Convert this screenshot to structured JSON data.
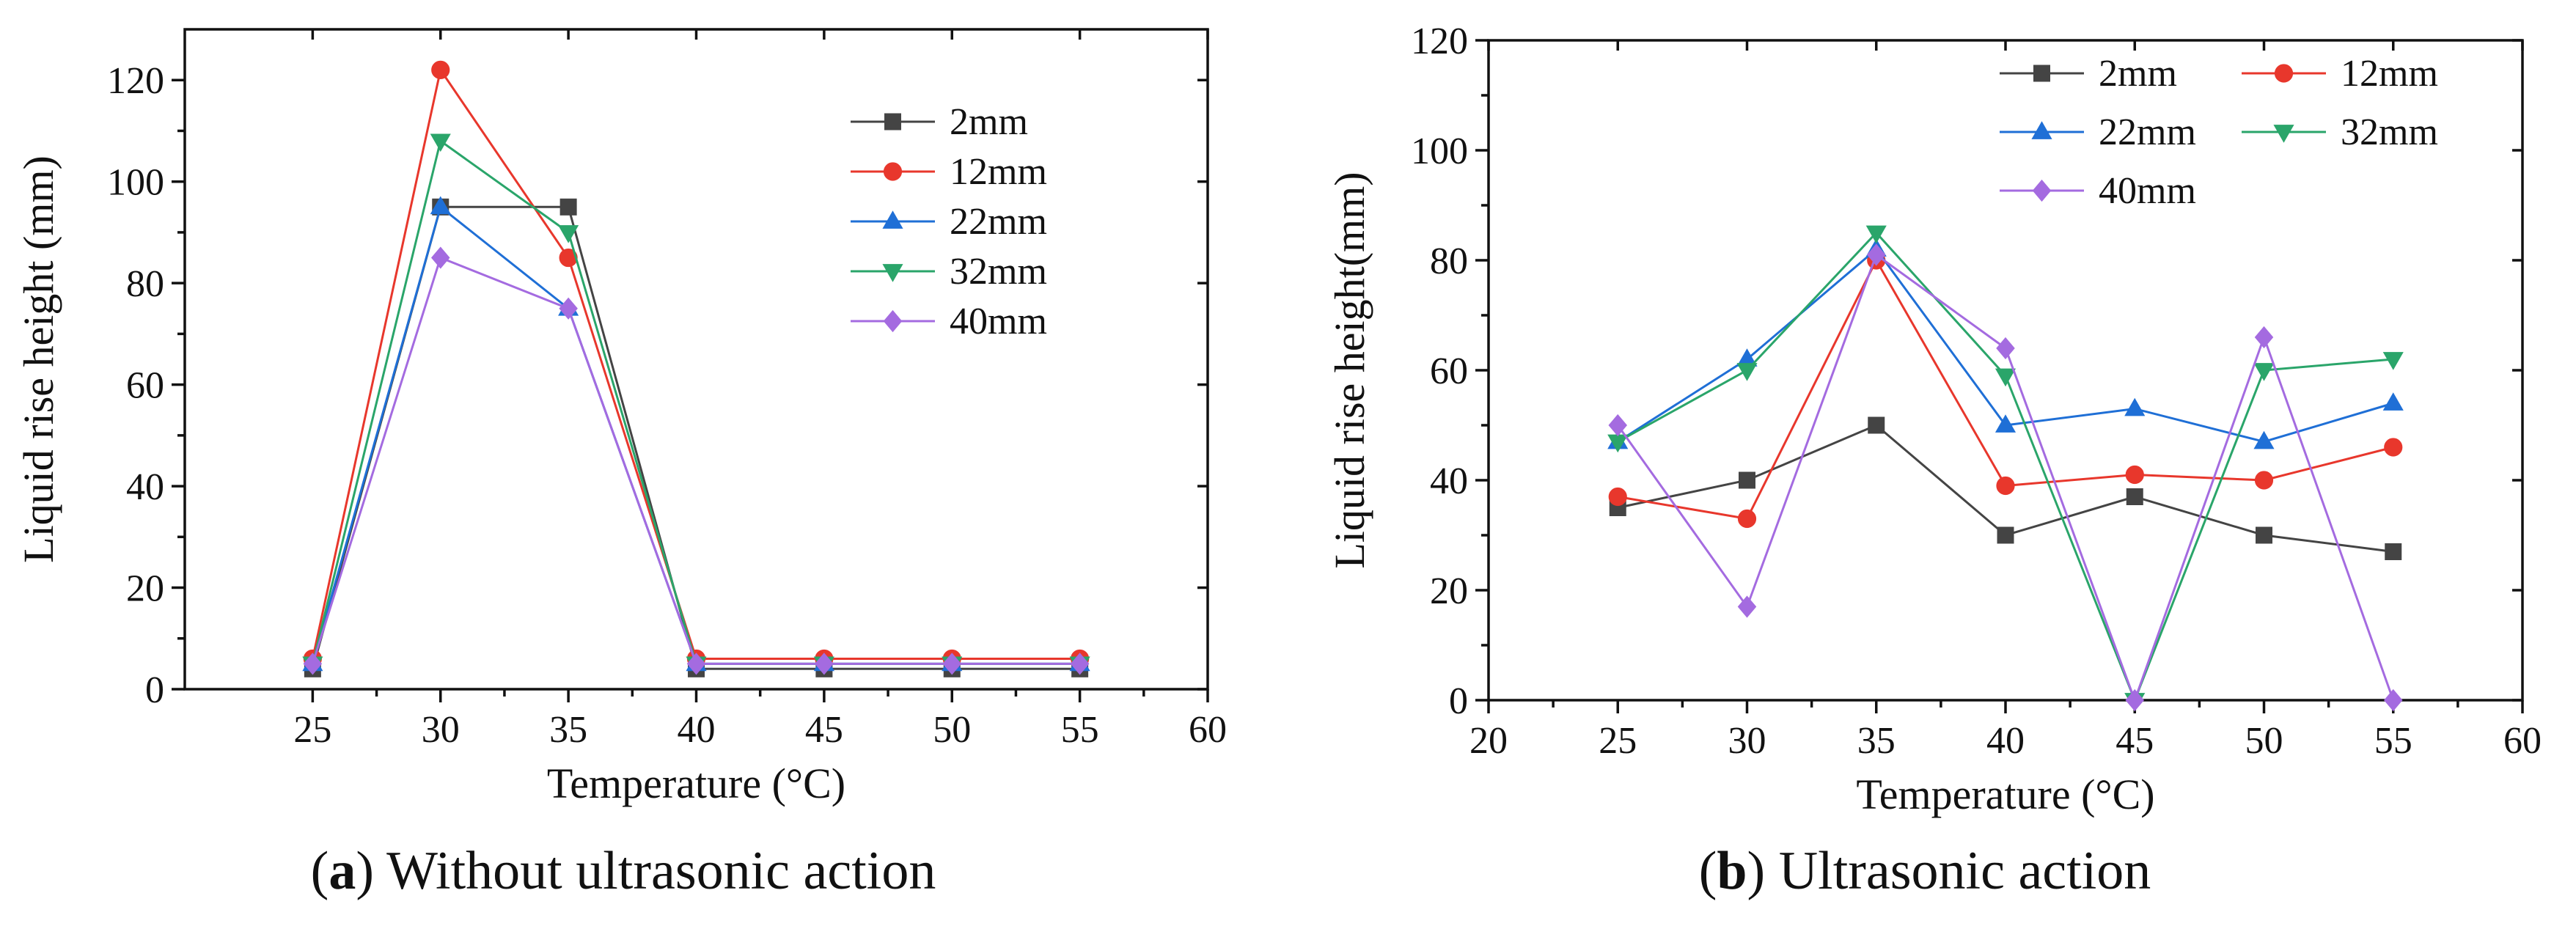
{
  "figure": {
    "panels": [
      {
        "caption": {
          "open": "(",
          "letter": "a",
          "close": ")",
          "text": " Without ultrasonic action"
        }
      },
      {
        "caption": {
          "open": "(",
          "letter": "b",
          "close": ")",
          "text": " Ultrasonic action"
        }
      }
    ]
  },
  "chart_data": [
    {
      "type": "line",
      "title": "",
      "xlabel": "Temperature (°C)",
      "ylabel": "Liquid rise height (mm)",
      "xlim": [
        20,
        60
      ],
      "ylim": [
        0,
        130
      ],
      "x_ticks": [
        25,
        30,
        35,
        40,
        45,
        50,
        55,
        60
      ],
      "y_ticks": [
        0,
        20,
        40,
        60,
        80,
        100,
        120
      ],
      "legend_position": "top-right",
      "x": [
        25,
        30,
        35,
        40,
        45,
        50,
        55
      ],
      "series": [
        {
          "name": "2mm",
          "color": "#444444",
          "marker": "square",
          "values": [
            4,
            95,
            95,
            4,
            4,
            4,
            4
          ]
        },
        {
          "name": "12mm",
          "color": "#e8372c",
          "marker": "circle",
          "values": [
            6,
            122,
            85,
            6,
            6,
            6,
            6
          ]
        },
        {
          "name": "22mm",
          "color": "#1f6fd6",
          "marker": "triangle-up",
          "values": [
            5,
            95,
            75,
            5,
            5,
            5,
            5
          ]
        },
        {
          "name": "32mm",
          "color": "#2aa56a",
          "marker": "triangle-down",
          "values": [
            5,
            108,
            90,
            5,
            5,
            5,
            5
          ]
        },
        {
          "name": "40mm",
          "color": "#a46be0",
          "marker": "diamond",
          "values": [
            5,
            85,
            75,
            5,
            5,
            5,
            5
          ]
        }
      ]
    },
    {
      "type": "line",
      "title": "",
      "xlabel": "Temperature (°C)",
      "ylabel": "Liquid rise height(mm)",
      "xlim": [
        20,
        60
      ],
      "ylim": [
        0,
        120
      ],
      "x_ticks": [
        20,
        25,
        30,
        35,
        40,
        45,
        50,
        55,
        60
      ],
      "y_ticks": [
        0,
        20,
        40,
        60,
        80,
        100,
        120
      ],
      "legend_position": "top-right",
      "x": [
        25,
        30,
        35,
        40,
        45,
        50,
        55
      ],
      "series": [
        {
          "name": "2mm",
          "color": "#444444",
          "marker": "square",
          "values": [
            35,
            40,
            50,
            30,
            37,
            30,
            27
          ]
        },
        {
          "name": "12mm",
          "color": "#e8372c",
          "marker": "circle",
          "values": [
            37,
            33,
            80,
            39,
            41,
            40,
            46
          ]
        },
        {
          "name": "22mm",
          "color": "#1f6fd6",
          "marker": "triangle-up",
          "values": [
            47,
            62,
            82,
            50,
            53,
            47,
            54
          ]
        },
        {
          "name": "32mm",
          "color": "#2aa56a",
          "marker": "triangle-down",
          "values": [
            47,
            60,
            85,
            59,
            0,
            60,
            62
          ]
        },
        {
          "name": "40mm",
          "color": "#a46be0",
          "marker": "diamond",
          "values": [
            50,
            17,
            81,
            64,
            0,
            66,
            0
          ]
        }
      ]
    }
  ]
}
